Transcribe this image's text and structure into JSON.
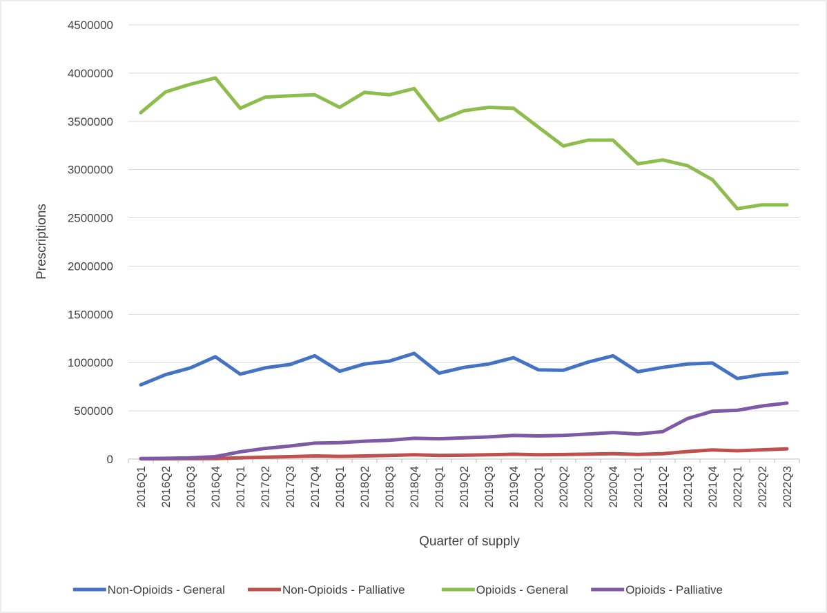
{
  "chart_data": {
    "type": "line",
    "title": "",
    "xlabel": "Quarter of supply",
    "ylabel": "Prescriptions",
    "ylim": [
      0,
      4500000
    ],
    "yticks": [
      0,
      500000,
      1000000,
      1500000,
      2000000,
      2500000,
      3000000,
      3500000,
      4000000,
      4500000
    ],
    "ytick_labels": [
      "0",
      "500000",
      "1000000",
      "1500000",
      "2000000",
      "2500000",
      "3000000",
      "3500000",
      "4000000",
      "4500000"
    ],
    "grid": true,
    "legend_position": "bottom",
    "categories": [
      "2016Q1",
      "2016Q2",
      "2016Q3",
      "2016Q4",
      "2017Q1",
      "2017Q2",
      "2017Q3",
      "2017Q4",
      "2018Q1",
      "2018Q2",
      "2018Q3",
      "2018Q4",
      "2019Q1",
      "2019Q2",
      "2019Q3",
      "2019Q4",
      "2020Q1",
      "2020Q2",
      "2020Q3",
      "2020Q4",
      "2021Q1",
      "2021Q2",
      "2021Q3",
      "2021Q4",
      "2022Q1",
      "2022Q2",
      "2022Q3"
    ],
    "series": [
      {
        "name": "Non-Opioids - General",
        "color": "#4472C4",
        "values": [
          770000,
          875000,
          945000,
          1060000,
          880000,
          945000,
          980000,
          1070000,
          910000,
          985000,
          1015000,
          1095000,
          890000,
          950000,
          985000,
          1050000,
          925000,
          920000,
          1005000,
          1070000,
          905000,
          950000,
          985000,
          995000,
          835000,
          875000,
          895000
        ]
      },
      {
        "name": "Non-Opioids - Palliative",
        "color": "#C0504D",
        "values": [
          2000,
          3000,
          4000,
          6000,
          12000,
          20000,
          25000,
          32000,
          28000,
          32000,
          37000,
          45000,
          37000,
          40000,
          45000,
          50000,
          44000,
          47000,
          51000,
          56000,
          48000,
          55000,
          78000,
          95000,
          86000,
          96000,
          106000
        ]
      },
      {
        "name": "Opioids - General",
        "color": "#8CBD4D",
        "values": [
          3590000,
          3805000,
          3885000,
          3950000,
          3635000,
          3750000,
          3765000,
          3775000,
          3645000,
          3800000,
          3775000,
          3840000,
          3510000,
          3610000,
          3645000,
          3635000,
          3440000,
          3245000,
          3305000,
          3305000,
          3060000,
          3100000,
          3040000,
          2895000,
          2595000,
          2635000,
          2635000
        ]
      },
      {
        "name": "Opioids - Palliative",
        "color": "#7F5AA4",
        "values": [
          5000,
          8000,
          12000,
          25000,
          75000,
          110000,
          135000,
          165000,
          170000,
          185000,
          195000,
          215000,
          210000,
          220000,
          230000,
          245000,
          240000,
          245000,
          260000,
          275000,
          260000,
          285000,
          420000,
          495000,
          505000,
          550000,
          580000
        ]
      }
    ]
  }
}
